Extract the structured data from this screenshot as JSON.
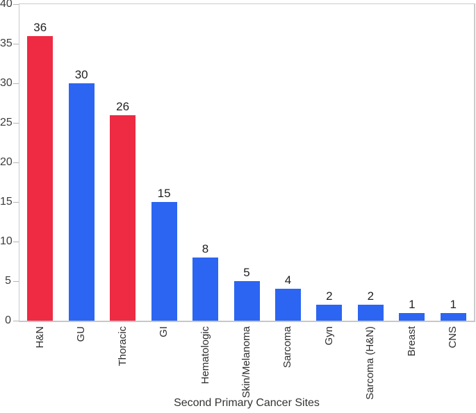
{
  "chart_data": {
    "type": "bar",
    "title": "",
    "xlabel": "Second Primary Cancer Sites",
    "ylabel": "",
    "ylim": [
      0,
      40
    ],
    "yticks": [
      0,
      5,
      10,
      15,
      20,
      25,
      30,
      35,
      40
    ],
    "grid": false,
    "legend": "none",
    "categories": [
      "H&N",
      "GU",
      "Thoracic",
      "GI",
      "Hematologic",
      "Skin/Melanoma",
      "Sarcoma",
      "Gyn",
      "Sarcoma (H&N)",
      "Breast",
      "CNS"
    ],
    "values": [
      36,
      30,
      26,
      15,
      8,
      5,
      4,
      2,
      2,
      1,
      1
    ],
    "bar_colors": [
      "#ee2b43",
      "#2b65f2",
      "#ee2b43",
      "#2b65f2",
      "#2b65f2",
      "#2b65f2",
      "#2b65f2",
      "#2b65f2",
      "#2b65f2",
      "#2b65f2",
      "#2b65f2"
    ],
    "highlight_color": "#ee2b43",
    "default_color": "#2b65f2",
    "axis_color": "#c9cacc",
    "tick_color": "#b2b3b5",
    "value_labels": [
      "36",
      "30",
      "26",
      "15",
      "8",
      "5",
      "4",
      "2",
      "2",
      "1",
      "1"
    ]
  }
}
